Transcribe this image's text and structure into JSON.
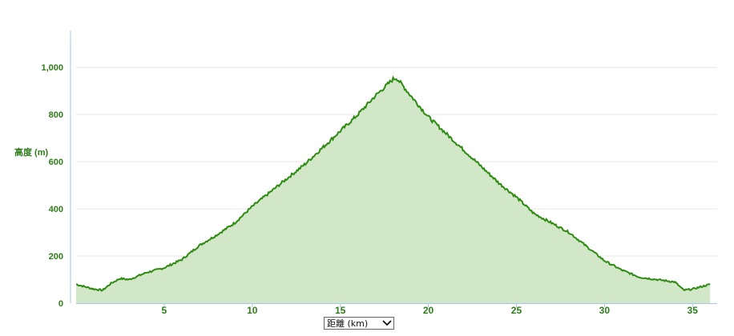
{
  "chart_data": {
    "type": "area",
    "ylabel": "高度 (m)",
    "ylim": [
      0,
      1150
    ],
    "xlim": [
      0,
      36.4
    ],
    "yticks": [
      "0",
      "200",
      "400",
      "600",
      "800",
      "1,000"
    ],
    "ytick_values": [
      0,
      200,
      400,
      600,
      800,
      1000
    ],
    "xticks": [
      "5",
      "10",
      "15",
      "20",
      "25",
      "30",
      "35"
    ],
    "xtick_values": [
      5,
      10,
      15,
      20,
      25,
      30,
      35
    ],
    "grid": true,
    "colors": {
      "line": "#2e8b12",
      "fill": "#d2e6c8",
      "text": "#2e7d1a",
      "axis": "#a9c6e8"
    },
    "x": [
      0,
      1,
      1.5,
      2,
      2.5,
      3,
      4,
      5,
      6,
      7,
      8,
      9,
      10,
      11,
      12,
      13,
      14,
      15,
      16,
      17,
      18,
      18.2,
      19,
      20,
      21,
      22,
      23,
      24,
      25,
      26,
      27,
      28,
      29,
      30,
      31,
      32,
      33,
      34,
      34.5,
      35,
      36
    ],
    "y": [
      80,
      60,
      55,
      85,
      105,
      100,
      130,
      150,
      185,
      245,
      290,
      340,
      410,
      470,
      530,
      590,
      660,
      730,
      800,
      880,
      950,
      955,
      880,
      790,
      720,
      650,
      580,
      510,
      450,
      380,
      340,
      300,
      240,
      180,
      140,
      110,
      100,
      90,
      55,
      60,
      80
    ]
  },
  "x_axis_selector": {
    "label": "距離 (km)",
    "icon": "chevron-down-icon"
  }
}
